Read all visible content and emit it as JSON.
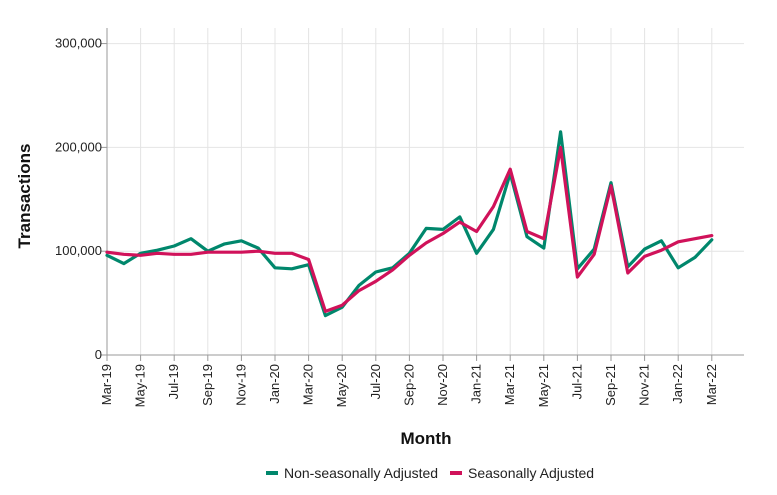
{
  "chart_data": {
    "type": "line",
    "xlabel": "Month",
    "ylabel": "Transactions",
    "ylim": [
      0,
      315000
    ],
    "y_ticks": [
      0,
      100000,
      200000,
      300000
    ],
    "y_tick_labels": [
      "0",
      "100,000",
      "200,000",
      "300,000"
    ],
    "grid": true,
    "legend_position": "bottom",
    "x": [
      "Mar-19",
      "Apr-19",
      "May-19",
      "Jun-19",
      "Jul-19",
      "Aug-19",
      "Sep-19",
      "Oct-19",
      "Nov-19",
      "Dec-19",
      "Jan-20",
      "Feb-20",
      "Mar-20",
      "Apr-20",
      "May-20",
      "Jun-20",
      "Jul-20",
      "Aug-20",
      "Sep-20",
      "Oct-20",
      "Nov-20",
      "Dec-20",
      "Jan-21",
      "Feb-21",
      "Mar-21",
      "Apr-21",
      "May-21",
      "Jun-21",
      "Jul-21",
      "Aug-21",
      "Sep-21",
      "Oct-21",
      "Nov-21",
      "Dec-21",
      "Jan-22",
      "Feb-22",
      "Mar-22"
    ],
    "x_tick_labels": [
      "Mar-19",
      "May-19",
      "Jul-19",
      "Sep-19",
      "Nov-19",
      "Jan-20",
      "Mar-20",
      "May-20",
      "Jul-20",
      "Sep-20",
      "Nov-20",
      "Jan-21",
      "Mar-21",
      "May-21",
      "Jul-21",
      "Sep-21",
      "Nov-21",
      "Jan-22",
      "Mar-22"
    ],
    "series": [
      {
        "name": "Non-seasonally Adjusted",
        "color": "#00876c",
        "values": [
          96000,
          88000,
          98000,
          101000,
          105000,
          112000,
          100000,
          107000,
          110000,
          103000,
          84000,
          83000,
          87000,
          38000,
          46000,
          67000,
          80000,
          84000,
          98000,
          122000,
          121000,
          133000,
          98000,
          121000,
          175000,
          114000,
          103000,
          215000,
          83000,
          102000,
          166000,
          85000,
          102000,
          110000,
          84000,
          94000,
          111000
        ]
      },
      {
        "name": "Seasonally Adjusted",
        "color": "#d0125a",
        "values": [
          99000,
          97000,
          96000,
          98000,
          97000,
          97000,
          99000,
          99000,
          99000,
          100000,
          98000,
          98000,
          92000,
          42000,
          48000,
          62000,
          71000,
          82000,
          96000,
          108000,
          117000,
          128000,
          119000,
          143000,
          179000,
          119000,
          112000,
          200000,
          75000,
          97000,
          163000,
          79000,
          95000,
          101000,
          109000,
          112000,
          115000
        ]
      }
    ]
  }
}
